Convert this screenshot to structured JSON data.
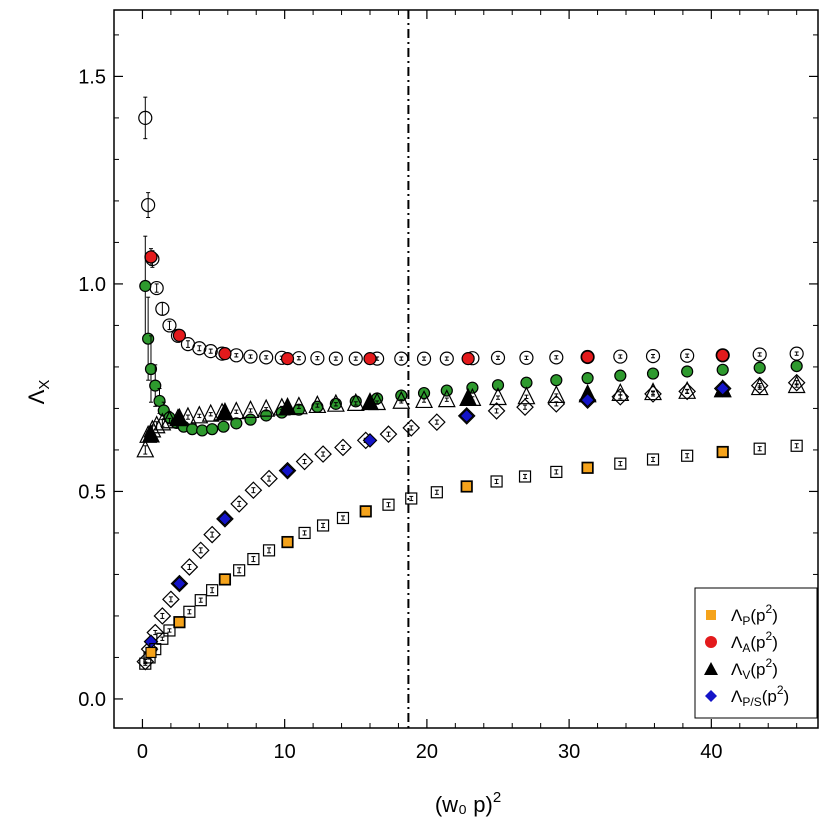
{
  "chart_data": {
    "type": "scatter",
    "title": "",
    "xlabel": "(w₀ p)",
    "xlabel_sup": "2",
    "ylabel": "Λ",
    "ylabel_sub": "X",
    "xlim": [
      -2,
      47.5
    ],
    "ylim": [
      -0.07,
      1.66
    ],
    "xticks": [
      0,
      10,
      20,
      30,
      40
    ],
    "yticks": [
      0.0,
      0.5,
      1.0,
      1.5
    ],
    "xtick_labels": [
      "0",
      "10",
      "20",
      "30",
      "40"
    ],
    "ytick_labels": [
      "0.0",
      "0.5",
      "1.0",
      "1.5"
    ],
    "vline_x": 18.7,
    "legend_position": "bottom-right",
    "colors": {
      "P": "#f5a31b",
      "A": "#e31a1c",
      "V": "#000000",
      "PS": "#1414c8",
      "green": "#2e9a2e"
    },
    "legend": [
      {
        "key": "P",
        "shape": "square",
        "base": "Λ",
        "sub": "P",
        "arg": "(p",
        "sup": "2",
        "close": ")"
      },
      {
        "key": "A",
        "shape": "circle",
        "base": "Λ",
        "sub": "A",
        "arg": "(p",
        "sup": "2",
        "close": ")"
      },
      {
        "key": "V",
        "shape": "triangle",
        "base": "Λ",
        "sub": "V",
        "arg": "(p",
        "sup": "2",
        "close": ")"
      },
      {
        "key": "PS",
        "shape": "diamond",
        "base": "Λ",
        "sub": "P/S",
        "arg": "(p",
        "sup": "2",
        "close": ")"
      }
    ],
    "series": [
      {
        "name": "Λ_A open circles",
        "shape": "circle",
        "fill": "none",
        "size": 6.5,
        "points": [
          [
            0.2,
            1.4,
            0.05
          ],
          [
            0.4,
            1.19,
            0.03
          ],
          [
            0.7,
            1.06,
            0.02
          ],
          [
            1.0,
            0.99,
            0.01
          ],
          [
            1.4,
            0.94,
            0.015
          ],
          [
            1.9,
            0.9,
            0.01
          ],
          [
            2.5,
            0.875,
            0.01
          ],
          [
            3.2,
            0.855,
            0.008
          ],
          [
            4.0,
            0.845,
            0.006
          ],
          [
            4.8,
            0.838,
            0.005
          ],
          [
            5.6,
            0.832,
            0.005
          ],
          [
            6.6,
            0.828,
            0.004
          ],
          [
            7.6,
            0.825,
            0.004
          ],
          [
            8.7,
            0.823,
            0.004
          ],
          [
            9.8,
            0.822,
            0.004
          ],
          [
            11.0,
            0.821,
            0.004
          ],
          [
            12.3,
            0.821,
            0.004
          ],
          [
            13.6,
            0.82,
            0.004
          ],
          [
            15.0,
            0.82,
            0.004
          ],
          [
            16.5,
            0.82,
            0.004
          ],
          [
            18.2,
            0.82,
            0.004
          ],
          [
            19.8,
            0.82,
            0.004
          ],
          [
            21.4,
            0.82,
            0.004
          ],
          [
            23.2,
            0.821,
            0.004
          ],
          [
            25.0,
            0.822,
            0.004
          ],
          [
            27.0,
            0.822,
            0.004
          ],
          [
            29.1,
            0.823,
            0.004
          ],
          [
            31.3,
            0.824,
            0.004
          ],
          [
            33.6,
            0.825,
            0.004
          ],
          [
            35.9,
            0.826,
            0.004
          ],
          [
            38.3,
            0.827,
            0.004
          ],
          [
            40.8,
            0.828,
            0.004
          ],
          [
            43.4,
            0.83,
            0.004
          ],
          [
            46.0,
            0.832,
            0.004
          ]
        ]
      },
      {
        "name": "Λ_A red",
        "shape": "circle",
        "fill": "#e31a1c",
        "size": 6,
        "points": [
          [
            0.6,
            1.065,
            0.02
          ],
          [
            2.6,
            0.876,
            0.01
          ],
          [
            5.8,
            0.832,
            0.005
          ],
          [
            10.2,
            0.82,
            0.004
          ],
          [
            16.0,
            0.82,
            0.004
          ],
          [
            22.9,
            0.82,
            0.004
          ],
          [
            31.3,
            0.824,
            0.004
          ],
          [
            40.8,
            0.828,
            0.004
          ]
        ]
      },
      {
        "name": "green",
        "shape": "circle",
        "fill": "#2e9a2e",
        "size": 5.5,
        "points": [
          [
            0.2,
            0.995,
            0.12
          ],
          [
            0.4,
            0.868,
            0.1
          ],
          [
            0.6,
            0.795,
            0.08
          ],
          [
            0.9,
            0.755,
            0.05
          ],
          [
            1.2,
            0.718,
            0.03
          ],
          [
            1.5,
            0.695,
            0.02
          ],
          [
            1.9,
            0.678,
            0.015
          ],
          [
            2.4,
            0.665,
            0.01
          ],
          [
            2.9,
            0.656,
            0.008
          ],
          [
            3.5,
            0.65,
            0.006
          ],
          [
            4.2,
            0.647,
            0.006
          ],
          [
            4.9,
            0.65,
            0.005
          ],
          [
            5.7,
            0.656,
            0.005
          ],
          [
            6.6,
            0.664,
            0.005
          ],
          [
            7.6,
            0.673,
            0.005
          ],
          [
            8.7,
            0.683,
            0.004
          ],
          [
            9.8,
            0.69,
            0.004
          ],
          [
            11.0,
            0.697,
            0.004
          ],
          [
            12.3,
            0.704,
            0.004
          ],
          [
            13.6,
            0.711,
            0.004
          ],
          [
            15.0,
            0.717,
            0.004
          ],
          [
            16.5,
            0.724,
            0.004
          ],
          [
            18.2,
            0.731,
            0.004
          ],
          [
            19.8,
            0.737,
            0.004
          ],
          [
            21.4,
            0.743,
            0.004
          ],
          [
            23.2,
            0.75,
            0.004
          ],
          [
            25.0,
            0.756,
            0.004
          ],
          [
            27.0,
            0.762,
            0.004
          ],
          [
            29.1,
            0.768,
            0.004
          ],
          [
            31.3,
            0.773,
            0.004
          ],
          [
            33.6,
            0.779,
            0.004
          ],
          [
            35.9,
            0.784,
            0.004
          ],
          [
            38.3,
            0.789,
            0.004
          ],
          [
            40.8,
            0.793,
            0.004
          ],
          [
            43.4,
            0.798,
            0.004
          ],
          [
            46.0,
            0.802,
            0.004
          ]
        ]
      },
      {
        "name": "Λ_V open triangles",
        "shape": "triangle",
        "fill": "none",
        "size": 8,
        "points": [
          [
            0.2,
            0.6,
            0.01
          ],
          [
            0.4,
            0.635,
            0.01
          ],
          [
            0.7,
            0.648,
            0.01
          ],
          [
            1.0,
            0.658,
            0.01
          ],
          [
            1.4,
            0.665,
            0.008
          ],
          [
            1.9,
            0.67,
            0.006
          ],
          [
            2.5,
            0.675,
            0.005
          ],
          [
            3.2,
            0.679,
            0.005
          ],
          [
            4.0,
            0.682,
            0.004
          ],
          [
            4.8,
            0.686,
            0.004
          ],
          [
            5.6,
            0.689,
            0.004
          ],
          [
            6.6,
            0.692,
            0.004
          ],
          [
            7.6,
            0.695,
            0.004
          ],
          [
            8.7,
            0.698,
            0.004
          ],
          [
            9.8,
            0.701,
            0.004
          ],
          [
            11.0,
            0.704,
            0.004
          ],
          [
            12.3,
            0.707,
            0.004
          ],
          [
            13.6,
            0.71,
            0.004
          ],
          [
            15.0,
            0.712,
            0.004
          ],
          [
            16.5,
            0.714,
            0.004
          ],
          [
            18.2,
            0.717,
            0.004
          ],
          [
            19.8,
            0.719,
            0.004
          ],
          [
            21.4,
            0.721,
            0.004
          ],
          [
            23.2,
            0.724,
            0.004
          ],
          [
            25.0,
            0.726,
            0.004
          ],
          [
            27.0,
            0.728,
            0.004
          ],
          [
            29.1,
            0.731,
            0.004
          ],
          [
            31.3,
            0.733,
            0.004
          ],
          [
            33.6,
            0.736,
            0.004
          ],
          [
            35.9,
            0.738,
            0.004
          ],
          [
            38.3,
            0.741,
            0.004
          ],
          [
            40.8,
            0.745,
            0.004
          ],
          [
            43.4,
            0.75,
            0.004
          ],
          [
            46.0,
            0.755,
            0.004
          ]
        ]
      },
      {
        "name": "Λ_V filled triangles",
        "shape": "triangle",
        "fill": "#000000",
        "size": 8,
        "points": [
          [
            0.6,
            0.636,
            0.01
          ],
          [
            2.6,
            0.676,
            0.005
          ],
          [
            5.8,
            0.69,
            0.004
          ],
          [
            10.2,
            0.702,
            0.004
          ],
          [
            16.0,
            0.714,
            0.004
          ],
          [
            22.9,
            0.724,
            0.004
          ],
          [
            31.3,
            0.733,
            0.004
          ],
          [
            40.8,
            0.745,
            0.004
          ]
        ]
      },
      {
        "name": "Λ_P/S open diamonds",
        "shape": "diamond",
        "fill": "none",
        "size": 8,
        "points": [
          [
            0.2,
            0.09,
            0.005
          ],
          [
            0.5,
            0.12,
            0.005
          ],
          [
            0.9,
            0.16,
            0.005
          ],
          [
            1.4,
            0.2,
            0.006
          ],
          [
            2.0,
            0.24,
            0.006
          ],
          [
            2.6,
            0.278,
            0.006
          ],
          [
            3.3,
            0.318,
            0.006
          ],
          [
            4.1,
            0.358,
            0.006
          ],
          [
            4.9,
            0.396,
            0.006
          ],
          [
            5.8,
            0.434,
            0.006
          ],
          [
            6.8,
            0.47,
            0.006
          ],
          [
            7.8,
            0.503,
            0.006
          ],
          [
            8.9,
            0.531,
            0.006
          ],
          [
            10.2,
            0.55,
            0.006
          ],
          [
            11.4,
            0.572,
            0.005
          ],
          [
            12.7,
            0.59,
            0.005
          ],
          [
            14.1,
            0.606,
            0.005
          ],
          [
            15.7,
            0.623,
            0.005
          ],
          [
            17.3,
            0.638,
            0.005
          ],
          [
            18.9,
            0.653,
            0.005
          ],
          [
            20.7,
            0.667,
            0.005
          ],
          [
            22.8,
            0.682,
            0.005
          ],
          [
            24.9,
            0.694,
            0.005
          ],
          [
            26.9,
            0.703,
            0.005
          ],
          [
            29.1,
            0.711,
            0.005
          ],
          [
            31.3,
            0.72,
            0.005
          ],
          [
            33.6,
            0.728,
            0.005
          ],
          [
            35.9,
            0.735,
            0.005
          ],
          [
            38.3,
            0.741,
            0.005
          ],
          [
            40.8,
            0.748,
            0.005
          ],
          [
            43.4,
            0.755,
            0.005
          ],
          [
            46.0,
            0.762,
            0.005
          ]
        ]
      },
      {
        "name": "Λ_P/S blue",
        "shape": "diamond",
        "fill": "#1414c8",
        "size": 6.5,
        "points": [
          [
            0.6,
            0.138,
            0.005
          ],
          [
            2.6,
            0.278,
            0.006
          ],
          [
            5.8,
            0.434,
            0.006
          ],
          [
            10.2,
            0.55,
            0.006
          ],
          [
            16.0,
            0.623,
            0.005
          ],
          [
            22.8,
            0.682,
            0.005
          ],
          [
            31.3,
            0.72,
            0.005
          ],
          [
            40.8,
            0.748,
            0.005
          ]
        ]
      },
      {
        "name": "Λ_P open squares",
        "shape": "square",
        "fill": "none",
        "size": 5.5,
        "points": [
          [
            0.2,
            0.085,
            0.004
          ],
          [
            0.5,
            0.1,
            0.004
          ],
          [
            0.9,
            0.12,
            0.004
          ],
          [
            1.4,
            0.145,
            0.004
          ],
          [
            1.9,
            0.165,
            0.004
          ],
          [
            2.6,
            0.185,
            0.005
          ],
          [
            3.3,
            0.21,
            0.005
          ],
          [
            4.1,
            0.238,
            0.005
          ],
          [
            4.9,
            0.262,
            0.006
          ],
          [
            5.8,
            0.288,
            0.006
          ],
          [
            6.8,
            0.31,
            0.006
          ],
          [
            7.8,
            0.337,
            0.006
          ],
          [
            8.9,
            0.358,
            0.006
          ],
          [
            10.2,
            0.378,
            0.006
          ],
          [
            11.4,
            0.4,
            0.005
          ],
          [
            12.7,
            0.418,
            0.005
          ],
          [
            14.1,
            0.436,
            0.005
          ],
          [
            15.7,
            0.452,
            0.005
          ],
          [
            17.3,
            0.468,
            0.005
          ],
          [
            18.9,
            0.483,
            0.005
          ],
          [
            20.7,
            0.498,
            0.005
          ],
          [
            22.8,
            0.512,
            0.005
          ],
          [
            24.9,
            0.524,
            0.005
          ],
          [
            26.9,
            0.536,
            0.005
          ],
          [
            29.1,
            0.547,
            0.005
          ],
          [
            31.3,
            0.557,
            0.005
          ],
          [
            33.6,
            0.567,
            0.005
          ],
          [
            35.9,
            0.577,
            0.005
          ],
          [
            38.3,
            0.586,
            0.005
          ],
          [
            40.8,
            0.595,
            0.005
          ],
          [
            43.4,
            0.603,
            0.005
          ],
          [
            46.0,
            0.61,
            0.005
          ]
        ]
      },
      {
        "name": "Λ_P orange",
        "shape": "square",
        "fill": "#f5a31b",
        "size": 5,
        "points": [
          [
            0.6,
            0.112,
            0.004
          ],
          [
            2.6,
            0.185,
            0.005
          ],
          [
            5.8,
            0.288,
            0.006
          ],
          [
            10.2,
            0.378,
            0.006
          ],
          [
            15.7,
            0.452,
            0.005
          ],
          [
            22.8,
            0.512,
            0.005
          ],
          [
            31.3,
            0.557,
            0.005
          ],
          [
            40.8,
            0.595,
            0.005
          ]
        ]
      }
    ]
  }
}
